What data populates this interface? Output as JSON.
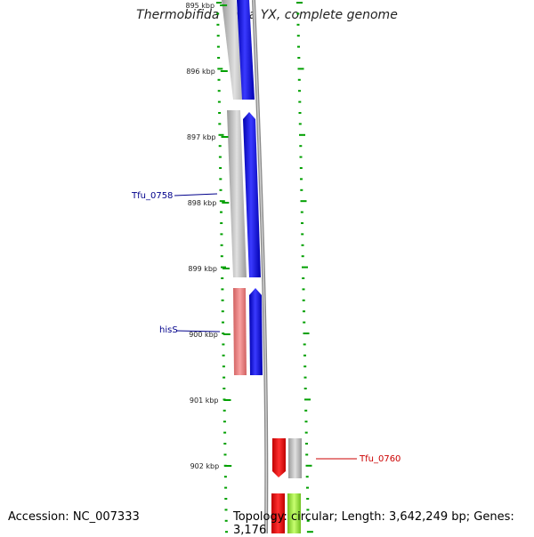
{
  "map": {
    "title": "Thermobifida fusca YX, complete genome",
    "accession_text": "Accession: NC_007333",
    "summary_text": "Topology: circular; Length: 3,642,249 bp; Genes: 3,176",
    "ruler_labels": [
      "895 kbp",
      "896 kbp",
      "897 kbp",
      "898 kbp",
      "899 kbp",
      "900 kbp",
      "901 kbp",
      "902 kbp"
    ],
    "gene_labels": [
      {
        "name": "Tfu_0758",
        "color": "#00008b"
      },
      {
        "name": "hisS",
        "color": "#00008b"
      },
      {
        "name": "Tfu_0760",
        "color": "#cc0000"
      }
    ],
    "colors": {
      "forward_cds": "#0000ff",
      "reverse_cds": "#ff0000",
      "gene_gray": "#b0b0b0",
      "rna_pink": "#f08080",
      "lime_feature": "#a0f040",
      "tick_green": "#00a000",
      "backbone": "#808080"
    }
  }
}
